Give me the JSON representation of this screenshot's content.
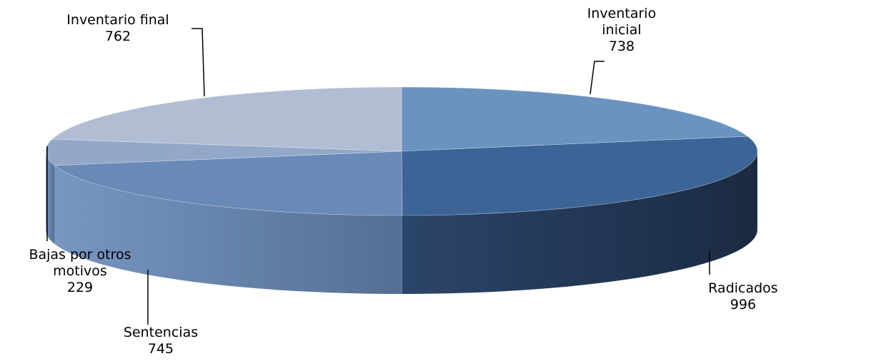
{
  "chart_data": {
    "type": "pie",
    "style": "3d-exploded-tilted",
    "legend": "none",
    "slices": [
      {
        "label": "Inventario inicial",
        "value": 738,
        "color": "#6b93bf"
      },
      {
        "label": "Radicados",
        "value": 996,
        "color": "#3d6496"
      },
      {
        "label": "Sentencias",
        "value": 745,
        "color": "#6989b7"
      },
      {
        "label": "Bajas por otros motivos",
        "value": 229,
        "color": "#93a8c8"
      },
      {
        "label": "Inventario final",
        "value": 762,
        "color": "#b1bdd3"
      }
    ]
  }
}
